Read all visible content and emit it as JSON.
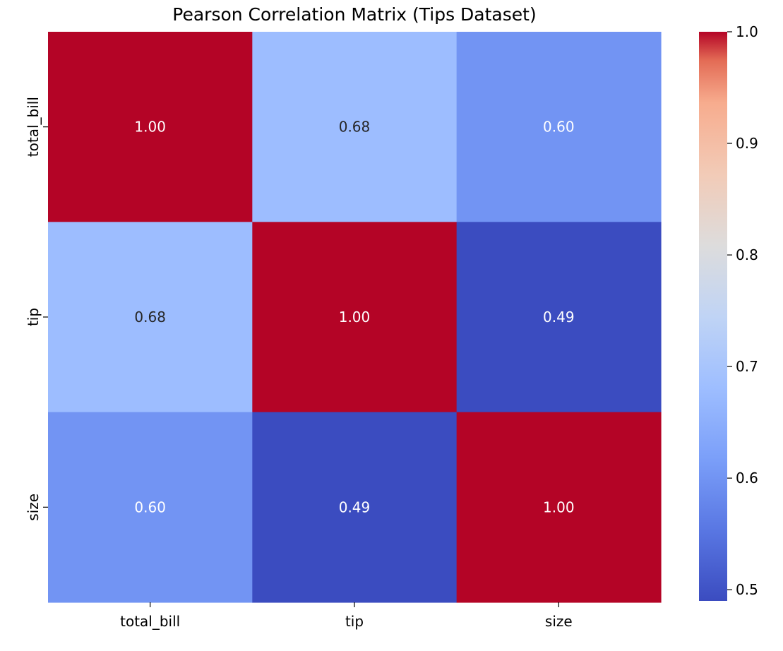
{
  "chart_data": {
    "type": "heatmap",
    "title": "Pearson Correlation Matrix (Tips Dataset)",
    "xlabel": "",
    "ylabel": "",
    "x_categories": [
      "total_bill",
      "tip",
      "size"
    ],
    "y_categories": [
      "total_bill",
      "tip",
      "size"
    ],
    "values": [
      [
        1.0,
        0.68,
        0.6
      ],
      [
        0.68,
        1.0,
        0.49
      ],
      [
        0.6,
        0.49,
        1.0
      ]
    ],
    "cell_labels": [
      [
        "1.00",
        "0.68",
        "0.60"
      ],
      [
        "0.68",
        "1.00",
        "0.49"
      ],
      [
        "0.60",
        "0.49",
        "1.00"
      ]
    ],
    "colormap": "coolwarm",
    "colorbar": {
      "range": [
        0.49,
        1.0
      ],
      "ticks": [
        0.5,
        0.6,
        0.7,
        0.8,
        0.9,
        1.0
      ],
      "tick_labels": [
        "0.5",
        "0.6",
        "0.7",
        "0.8",
        "0.9",
        "1.0"
      ],
      "location": "right"
    },
    "grid": false,
    "legend": "none"
  }
}
